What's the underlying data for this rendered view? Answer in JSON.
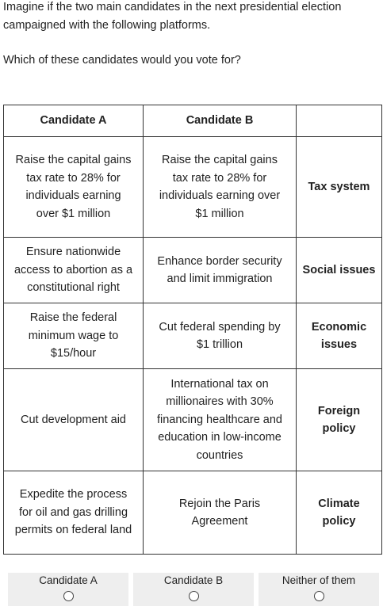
{
  "intro": {
    "text": "Imagine if the two main candidates in the next presidential election campaigned with the following platforms."
  },
  "question": {
    "text": "Which of these candidates would you vote for?"
  },
  "table": {
    "headers": {
      "candidate_a": "Candidate A",
      "candidate_b": "Candidate B",
      "attribute": ""
    },
    "rows": [
      {
        "candidate_a": "Raise the capital gains tax rate to 28% for individuals earning over $1 million",
        "candidate_b": "Raise the capital gains tax rate to 28% for individuals earning over $1 million",
        "attribute": "Tax system"
      },
      {
        "candidate_a": "Ensure nationwide access to abortion as a constitutional right",
        "candidate_b": "Enhance border security and limit immigration",
        "attribute": "Social issues"
      },
      {
        "candidate_a": "Raise the federal minimum wage to $15/hour",
        "candidate_b": "Cut federal spending by $1 trillion",
        "attribute": "Economic issues"
      },
      {
        "candidate_a": "Cut development aid",
        "candidate_b": "International tax on millionaires with 30% financing healthcare and education in low-income countries",
        "attribute": "Foreign policy"
      },
      {
        "candidate_a": "Expedite the process for oil and gas drilling permits on federal land",
        "candidate_b": "Rejoin the Paris Agreement",
        "attribute": "Climate policy"
      }
    ]
  },
  "choices": [
    {
      "label": "Candidate A",
      "selected": false
    },
    {
      "label": "Candidate B",
      "selected": false
    },
    {
      "label": "Neither of them",
      "selected": false
    }
  ],
  "colors": {
    "choice_background": "#eeeeee",
    "border": "#333333",
    "text": "#222222"
  }
}
